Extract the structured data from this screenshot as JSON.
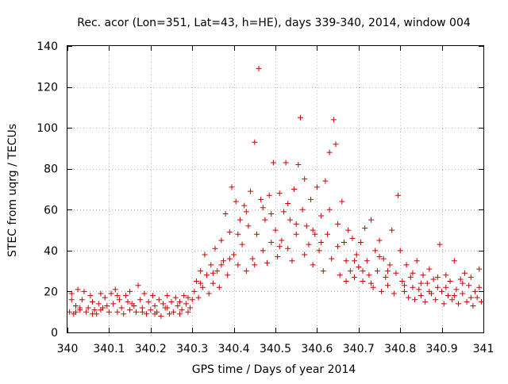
{
  "chart_data": {
    "type": "scatter",
    "title": "Rec. acor (Lon=351, Lat=43, h=HE), days 339-340, 2014, window 004",
    "xlabel": "GPS time / Days of year 2014",
    "ylabel": "STEC from uqrg / TECUs",
    "xlim": [
      340,
      341
    ],
    "ylim": [
      0,
      140
    ],
    "xticks": [
      340,
      340.1,
      340.2,
      340.3,
      340.4,
      340.5,
      340.6,
      340.7,
      340.8,
      340.9,
      341
    ],
    "xtick_labels": [
      "340",
      "340.1",
      "340.2",
      "340.3",
      "340.4",
      "340.5",
      "340.6",
      "340.7",
      "340.8",
      "340.9",
      "341"
    ],
    "yticks": [
      0,
      20,
      40,
      60,
      80,
      100,
      120,
      140
    ],
    "ytick_labels": [
      "0",
      "20",
      "40",
      "60",
      "80",
      "100",
      "120",
      "140"
    ],
    "grid": true,
    "marker": "+",
    "series_color": "#cc0000",
    "points": [
      [
        340.005,
        10
      ],
      [
        340.01,
        19
      ],
      [
        340.015,
        9
      ],
      [
        340.02,
        13
      ],
      [
        340.025,
        21
      ],
      [
        340.03,
        11
      ],
      [
        340.035,
        16
      ],
      [
        340.04,
        20
      ],
      [
        340.045,
        10
      ],
      [
        340.05,
        12
      ],
      [
        340.055,
        18
      ],
      [
        340.06,
        15
      ],
      [
        340.065,
        11
      ],
      [
        340.07,
        9
      ],
      [
        340.075,
        14
      ],
      [
        340.08,
        19
      ],
      [
        340.085,
        12
      ],
      [
        340.09,
        17
      ],
      [
        340.095,
        13
      ],
      [
        340.1,
        10
      ],
      [
        340.105,
        19
      ],
      [
        340.11,
        14
      ],
      [
        340.115,
        21
      ],
      [
        340.12,
        10
      ],
      [
        340.125,
        16
      ],
      [
        340.13,
        12
      ],
      [
        340.135,
        9
      ],
      [
        340.14,
        18
      ],
      [
        340.145,
        15
      ],
      [
        340.15,
        11
      ],
      [
        340.155,
        14
      ],
      [
        340.16,
        13
      ],
      [
        340.165,
        10
      ],
      [
        340.17,
        23
      ],
      [
        340.175,
        16
      ],
      [
        340.18,
        12
      ],
      [
        340.185,
        19
      ],
      [
        340.19,
        9
      ],
      [
        340.195,
        15
      ],
      [
        340.2,
        11
      ],
      [
        340.205,
        18
      ],
      [
        340.21,
        13
      ],
      [
        340.215,
        10
      ],
      [
        340.22,
        16
      ],
      [
        340.225,
        8
      ],
      [
        340.23,
        14
      ],
      [
        340.235,
        12
      ],
      [
        340.24,
        18
      ],
      [
        340.245,
        9
      ],
      [
        340.25,
        15
      ],
      [
        340.255,
        10
      ],
      [
        340.26,
        17
      ],
      [
        340.265,
        13
      ],
      [
        340.27,
        9
      ],
      [
        340.275,
        11
      ],
      [
        340.28,
        18
      ],
      [
        340.285,
        14
      ],
      [
        340.29,
        10
      ],
      [
        340.295,
        12
      ],
      [
        340.3,
        16
      ],
      [
        340.305,
        20
      ],
      [
        340.31,
        25
      ],
      [
        340.315,
        17
      ],
      [
        340.32,
        30
      ],
      [
        340.325,
        22
      ],
      [
        340.33,
        38
      ],
      [
        340.335,
        28
      ],
      [
        340.34,
        19
      ],
      [
        340.345,
        33
      ],
      [
        340.35,
        24
      ],
      [
        340.355,
        41
      ],
      [
        340.36,
        30
      ],
      [
        340.365,
        22
      ],
      [
        340.37,
        45
      ],
      [
        340.375,
        35
      ],
      [
        340.38,
        58
      ],
      [
        340.385,
        28
      ],
      [
        340.39,
        49
      ],
      [
        340.395,
        71
      ],
      [
        340.4,
        38
      ],
      [
        340.405,
        64
      ],
      [
        340.41,
        33
      ],
      [
        340.415,
        55
      ],
      [
        340.42,
        43
      ],
      [
        340.425,
        62
      ],
      [
        340.43,
        30
      ],
      [
        340.435,
        52
      ],
      [
        340.44,
        69
      ],
      [
        340.445,
        36
      ],
      [
        340.45,
        93
      ],
      [
        340.455,
        48
      ],
      [
        340.46,
        129
      ],
      [
        340.465,
        65
      ],
      [
        340.47,
        40
      ],
      [
        340.475,
        55
      ],
      [
        340.48,
        34
      ],
      [
        340.485,
        67
      ],
      [
        340.49,
        44
      ],
      [
        340.495,
        83
      ],
      [
        340.5,
        50
      ],
      [
        340.505,
        37
      ],
      [
        340.51,
        68
      ],
      [
        340.515,
        45
      ],
      [
        340.52,
        59
      ],
      [
        340.525,
        83
      ],
      [
        340.53,
        41
      ],
      [
        340.535,
        55
      ],
      [
        340.54,
        35
      ],
      [
        340.545,
        70
      ],
      [
        340.55,
        48
      ],
      [
        340.555,
        82
      ],
      [
        340.56,
        105
      ],
      [
        340.565,
        60
      ],
      [
        340.57,
        38
      ],
      [
        340.575,
        52
      ],
      [
        340.58,
        43
      ],
      [
        340.585,
        65
      ],
      [
        340.59,
        33
      ],
      [
        340.595,
        48
      ],
      [
        340.6,
        71
      ],
      [
        340.605,
        40
      ],
      [
        340.61,
        57
      ],
      [
        340.615,
        30
      ],
      [
        340.62,
        74
      ],
      [
        340.625,
        48
      ],
      [
        340.63,
        88
      ],
      [
        340.635,
        36
      ],
      [
        340.64,
        104
      ],
      [
        340.645,
        92
      ],
      [
        340.65,
        53
      ],
      [
        340.655,
        28
      ],
      [
        340.66,
        64
      ],
      [
        340.665,
        44
      ],
      [
        340.67,
        35
      ],
      [
        340.675,
        50
      ],
      [
        340.68,
        30
      ],
      [
        340.685,
        46
      ],
      [
        340.69,
        27
      ],
      [
        340.695,
        38
      ],
      [
        340.7,
        32
      ],
      [
        340.705,
        44
      ],
      [
        340.71,
        25
      ],
      [
        340.715,
        51
      ],
      [
        340.72,
        35
      ],
      [
        340.725,
        28
      ],
      [
        340.73,
        55
      ],
      [
        340.735,
        22
      ],
      [
        340.74,
        40
      ],
      [
        340.745,
        30
      ],
      [
        340.75,
        45
      ],
      [
        340.755,
        20
      ],
      [
        340.76,
        36
      ],
      [
        340.765,
        27
      ],
      [
        340.77,
        23
      ],
      [
        340.775,
        33
      ],
      [
        340.78,
        50
      ],
      [
        340.785,
        19
      ],
      [
        340.79,
        29
      ],
      [
        340.795,
        67
      ],
      [
        340.8,
        40
      ],
      [
        340.805,
        25
      ],
      [
        340.81,
        20
      ],
      [
        340.815,
        33
      ],
      [
        340.82,
        17
      ],
      [
        340.825,
        27
      ],
      [
        340.83,
        22
      ],
      [
        340.835,
        16
      ],
      [
        340.84,
        35
      ],
      [
        340.845,
        21
      ],
      [
        340.85,
        18
      ],
      [
        340.855,
        28
      ],
      [
        340.86,
        15
      ],
      [
        340.865,
        24
      ],
      [
        340.87,
        31
      ],
      [
        340.875,
        19
      ],
      [
        340.88,
        26
      ],
      [
        340.885,
        16
      ],
      [
        340.89,
        22
      ],
      [
        340.895,
        43
      ],
      [
        340.9,
        20
      ],
      [
        340.905,
        14
      ],
      [
        340.91,
        28
      ],
      [
        340.915,
        18
      ],
      [
        340.92,
        25
      ],
      [
        340.925,
        16
      ],
      [
        340.93,
        35
      ],
      [
        340.935,
        21
      ],
      [
        340.94,
        14
      ],
      [
        340.945,
        26
      ],
      [
        340.95,
        19
      ],
      [
        340.955,
        29
      ],
      [
        340.96,
        15
      ],
      [
        340.965,
        23
      ],
      [
        340.97,
        27
      ],
      [
        340.975,
        13
      ],
      [
        340.98,
        20
      ],
      [
        340.985,
        17
      ],
      [
        340.99,
        31
      ],
      [
        340.995,
        15
      ],
      [
        340.01,
        16
      ],
      [
        340.02,
        10
      ],
      [
        340.03,
        12
      ],
      [
        340.06,
        9
      ],
      [
        340.08,
        11
      ],
      [
        340.12,
        18
      ],
      [
        340.15,
        20
      ],
      [
        340.18,
        10
      ],
      [
        340.21,
        9
      ],
      [
        340.24,
        12
      ],
      [
        340.27,
        15
      ],
      [
        340.29,
        17
      ],
      [
        340.32,
        24
      ],
      [
        340.35,
        29
      ],
      [
        340.37,
        33
      ],
      [
        340.39,
        36
      ],
      [
        340.41,
        48
      ],
      [
        340.43,
        59
      ],
      [
        340.45,
        33
      ],
      [
        340.47,
        61
      ],
      [
        340.49,
        58
      ],
      [
        340.51,
        42
      ],
      [
        340.53,
        63
      ],
      [
        340.55,
        53
      ],
      [
        340.57,
        75
      ],
      [
        340.59,
        50
      ],
      [
        340.61,
        44
      ],
      [
        340.63,
        60
      ],
      [
        340.65,
        42
      ],
      [
        340.67,
        25
      ],
      [
        340.69,
        35
      ],
      [
        340.71,
        30
      ],
      [
        340.73,
        24
      ],
      [
        340.75,
        37
      ],
      [
        340.77,
        30
      ],
      [
        340.81,
        23
      ],
      [
        340.83,
        29
      ],
      [
        340.85,
        24
      ],
      [
        340.87,
        20
      ],
      [
        340.89,
        27
      ],
      [
        340.91,
        22
      ],
      [
        340.93,
        18
      ],
      [
        340.95,
        24
      ],
      [
        340.97,
        17
      ],
      [
        340.99,
        22
      ]
    ]
  }
}
